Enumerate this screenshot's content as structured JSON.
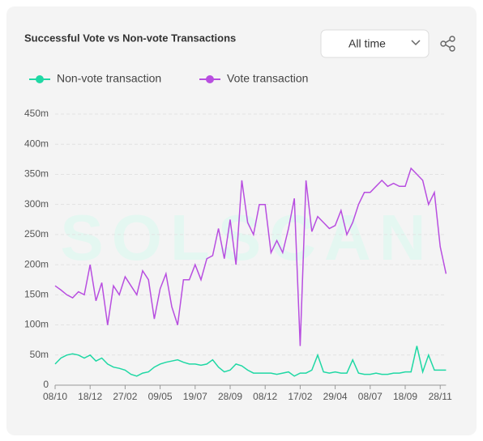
{
  "header": {
    "title": "Successful Vote vs Non-vote Transactions",
    "range_select": "All time",
    "watermark": "SOLSCAN"
  },
  "chart_data": {
    "type": "line",
    "legend": "top-left",
    "grid": true,
    "categories": [
      "08/10",
      null,
      null,
      null,
      null,
      null,
      "18/12",
      null,
      null,
      null,
      null,
      null,
      "27/02",
      null,
      null,
      null,
      null,
      null,
      "09/05",
      null,
      null,
      null,
      null,
      null,
      "19/07",
      null,
      null,
      null,
      null,
      null,
      "28/09",
      null,
      null,
      null,
      null,
      null,
      "08/12",
      null,
      null,
      null,
      null,
      null,
      "17/02",
      null,
      null,
      null,
      null,
      null,
      "29/04",
      null,
      null,
      null,
      null,
      null,
      "08/07",
      null,
      null,
      null,
      null,
      null,
      "18/09",
      null,
      null,
      null,
      null,
      null,
      "28/11",
      null
    ],
    "ylim": [
      0,
      450
    ],
    "yticks": [
      0,
      {
        "value": 50,
        "label": "50m"
      },
      {
        "value": 100,
        "label": "100m"
      },
      {
        "value": 150,
        "label": "150m"
      },
      {
        "value": 200,
        "label": "200m"
      },
      {
        "value": 250,
        "label": "250m"
      },
      {
        "value": 300,
        "label": "300m"
      },
      {
        "value": 350,
        "label": "350m"
      },
      {
        "value": 400,
        "label": "400m"
      },
      {
        "value": 450,
        "label": "450m"
      }
    ],
    "series": [
      {
        "name": "Non-vote transaction",
        "color": "#1fd8a4",
        "values": [
          35,
          45,
          50,
          52,
          50,
          45,
          50,
          40,
          45,
          35,
          30,
          28,
          25,
          18,
          15,
          20,
          22,
          30,
          35,
          38,
          40,
          42,
          38,
          35,
          35,
          33,
          35,
          42,
          30,
          22,
          25,
          35,
          32,
          25,
          20,
          20,
          20,
          20,
          18,
          20,
          22,
          15,
          20,
          20,
          25,
          50,
          22,
          20,
          22,
          20,
          20,
          42,
          20,
          18,
          18,
          20,
          18,
          18,
          20,
          20,
          22,
          22,
          65,
          22,
          50,
          25,
          25,
          25
        ]
      },
      {
        "name": "Vote transaction",
        "color": "#b84ee0",
        "values": [
          165,
          158,
          150,
          145,
          155,
          150,
          200,
          140,
          170,
          100,
          165,
          150,
          180,
          165,
          150,
          190,
          175,
          110,
          160,
          185,
          130,
          100,
          175,
          175,
          200,
          175,
          210,
          215,
          260,
          210,
          275,
          200,
          340,
          270,
          250,
          300,
          300,
          220,
          240,
          220,
          260,
          310,
          65,
          340,
          255,
          280,
          270,
          260,
          265,
          290,
          250,
          270,
          300,
          320,
          320,
          330,
          340,
          330,
          335,
          330,
          330,
          360,
          350,
          340,
          300,
          320,
          230,
          185
        ]
      }
    ]
  }
}
